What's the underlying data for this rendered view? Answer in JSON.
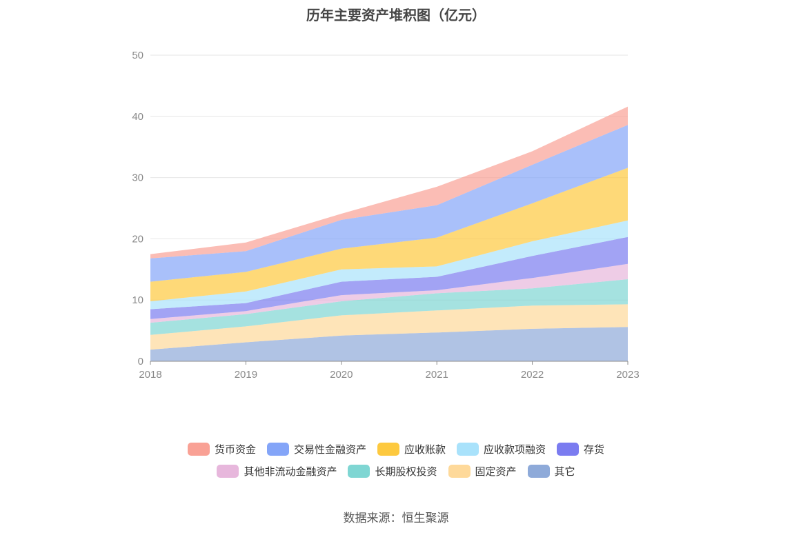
{
  "chart_data": {
    "type": "area",
    "stacked": true,
    "title": "历年主要资产堆积图（亿元）",
    "categories": [
      "2018",
      "2019",
      "2020",
      "2021",
      "2022",
      "2023"
    ],
    "ylim": [
      0,
      50
    ],
    "yticks": [
      0,
      10,
      20,
      30,
      40,
      50
    ],
    "grid": true,
    "legend_position": "bottom",
    "series": [
      {
        "name": "其它",
        "color": "#8eaad9",
        "values": [
          1.9,
          3.1,
          4.2,
          4.7,
          5.3,
          5.6
        ]
      },
      {
        "name": "固定资产",
        "color": "#fed99a",
        "values": [
          2.4,
          2.6,
          3.3,
          3.6,
          3.8,
          3.7
        ]
      },
      {
        "name": "长期股权投资",
        "color": "#7fd6d3",
        "values": [
          2.0,
          2.0,
          2.3,
          2.8,
          2.8,
          4.1
        ]
      },
      {
        "name": "其他非流动金融资产",
        "color": "#e7b7dc",
        "values": [
          0.6,
          0.5,
          1.0,
          0.5,
          1.7,
          2.5
        ]
      },
      {
        "name": "存货",
        "color": "#7b7cf0",
        "values": [
          1.6,
          1.3,
          2.2,
          2.2,
          3.6,
          4.4
        ]
      },
      {
        "name": "应收款项融资",
        "color": "#a9e2fb",
        "values": [
          1.3,
          1.9,
          2.0,
          1.7,
          2.4,
          2.7
        ]
      },
      {
        "name": "应收账款",
        "color": "#fdc93f",
        "values": [
          3.2,
          3.2,
          3.4,
          4.7,
          6.2,
          8.6
        ]
      },
      {
        "name": "交易性金融资产",
        "color": "#84a5f8",
        "values": [
          3.8,
          3.4,
          4.7,
          5.3,
          6.3,
          7.0
        ]
      },
      {
        "name": "货币资金",
        "color": "#f9a195",
        "values": [
          0.7,
          1.4,
          1.0,
          3.0,
          2.2,
          3.0
        ]
      }
    ]
  },
  "legend": {
    "row1": [
      {
        "label": "货币资金",
        "color": "#f9a195"
      },
      {
        "label": "交易性金融资产",
        "color": "#84a5f8"
      },
      {
        "label": "应收账款",
        "color": "#fdc93f"
      },
      {
        "label": "应收款项融资",
        "color": "#a9e2fb"
      },
      {
        "label": "存货",
        "color": "#7b7cf0"
      }
    ],
    "row2": [
      {
        "label": "其他非流动金融资产",
        "color": "#e7b7dc"
      },
      {
        "label": "长期股权投资",
        "color": "#7fd6d3"
      },
      {
        "label": "固定资产",
        "color": "#fed99a"
      },
      {
        "label": "其它",
        "color": "#8eaad9"
      }
    ]
  },
  "source": "数据来源：恒生聚源"
}
